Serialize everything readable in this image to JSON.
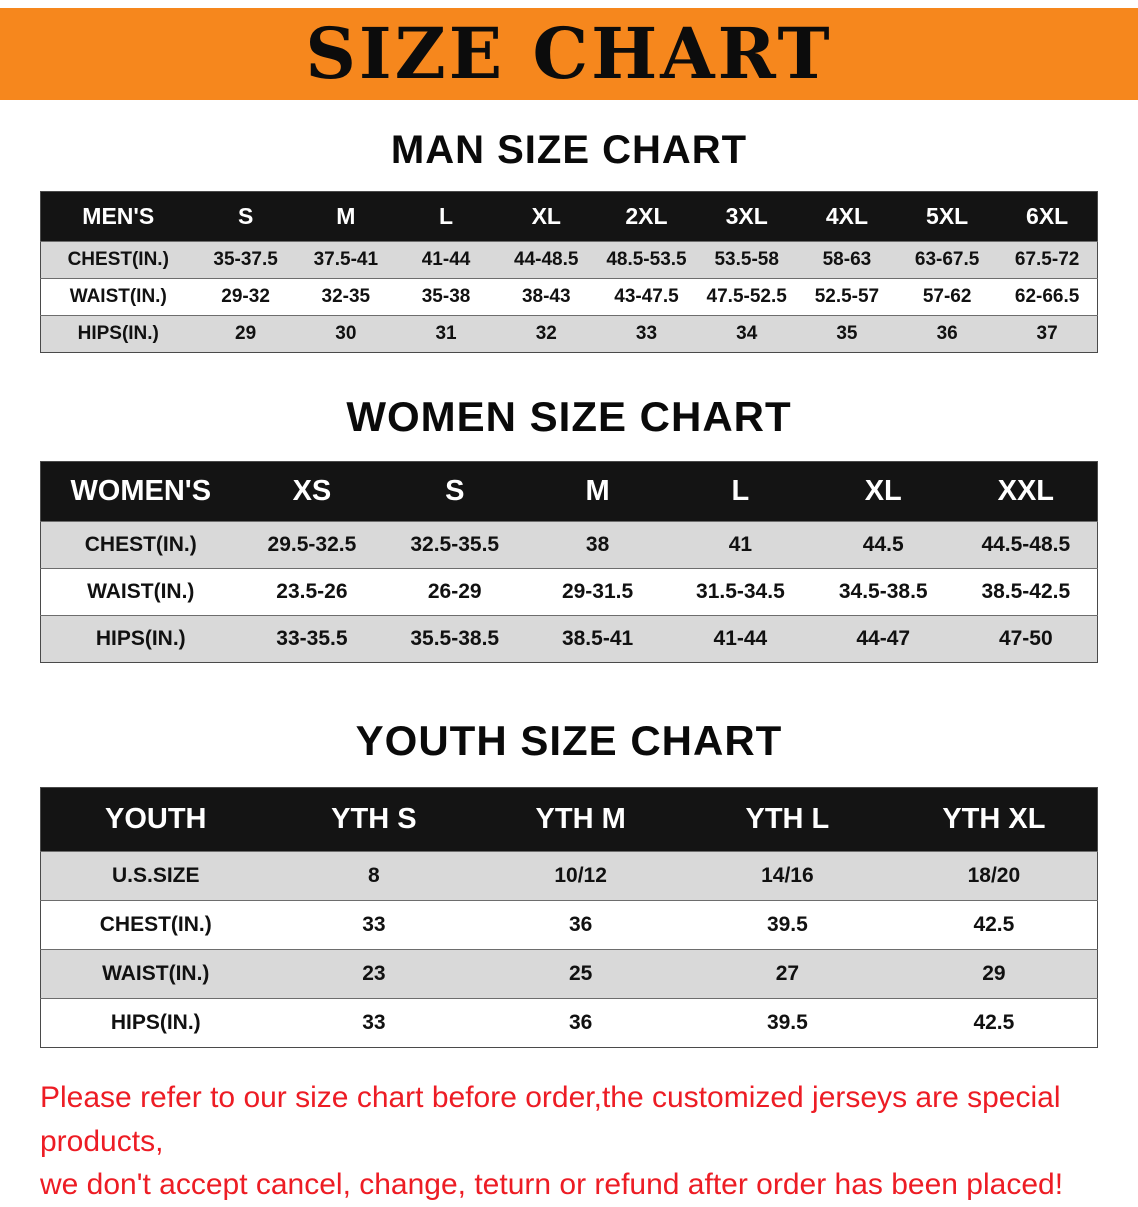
{
  "banner": {
    "title": "SIZE CHART",
    "bg_color": "#f6871d"
  },
  "sections": [
    {
      "heading": "MAN SIZE CHART",
      "table": {
        "header": [
          "MEN'S",
          "S",
          "M",
          "L",
          "XL",
          "2XL",
          "3XL",
          "4XL",
          "5XL",
          "6XL"
        ],
        "rows": [
          [
            "CHEST(IN.)",
            "35-37.5",
            "37.5-41",
            "41-44",
            "44-48.5",
            "48.5-53.5",
            "53.5-58",
            "58-63",
            "63-67.5",
            "67.5-72"
          ],
          [
            "WAIST(IN.)",
            "29-32",
            "32-35",
            "35-38",
            "38-43",
            "43-47.5",
            "47.5-52.5",
            "52.5-57",
            "57-62",
            "62-66.5"
          ],
          [
            "HIPS(IN.)",
            "29",
            "30",
            "31",
            "32",
            "33",
            "34",
            "35",
            "36",
            "37"
          ]
        ]
      }
    },
    {
      "heading": "WOMEN SIZE CHART",
      "table": {
        "header": [
          "WOMEN'S",
          "XS",
          "S",
          "M",
          "L",
          "XL",
          "XXL"
        ],
        "rows": [
          [
            "CHEST(IN.)",
            "29.5-32.5",
            "32.5-35.5",
            "38",
            "41",
            "44.5",
            "44.5-48.5"
          ],
          [
            "WAIST(IN.)",
            "23.5-26",
            "26-29",
            "29-31.5",
            "31.5-34.5",
            "34.5-38.5",
            "38.5-42.5"
          ],
          [
            "HIPS(IN.)",
            "33-35.5",
            "35.5-38.5",
            "38.5-41",
            "41-44",
            "44-47",
            "47-50"
          ]
        ]
      }
    },
    {
      "heading": "YOUTH SIZE CHART",
      "table": {
        "header": [
          "YOUTH",
          "YTH S",
          "YTH M",
          "YTH L",
          "YTH XL"
        ],
        "rows": [
          [
            "U.S.SIZE",
            "8",
            "10/12",
            "14/16",
            "18/20"
          ],
          [
            "CHEST(IN.)",
            "33",
            "36",
            "39.5",
            "42.5"
          ],
          [
            "WAIST(IN.)",
            "23",
            "25",
            "27",
            "29"
          ],
          [
            "HIPS(IN.)",
            "33",
            "36",
            "39.5",
            "42.5"
          ]
        ]
      }
    }
  ],
  "footer": {
    "line1": "Please refer to our size chart before order,the customized jerseys are special products,",
    "line2": "we don't accept cancel, change, teturn or refund after order has been placed!",
    "color": "#ed1c24"
  }
}
